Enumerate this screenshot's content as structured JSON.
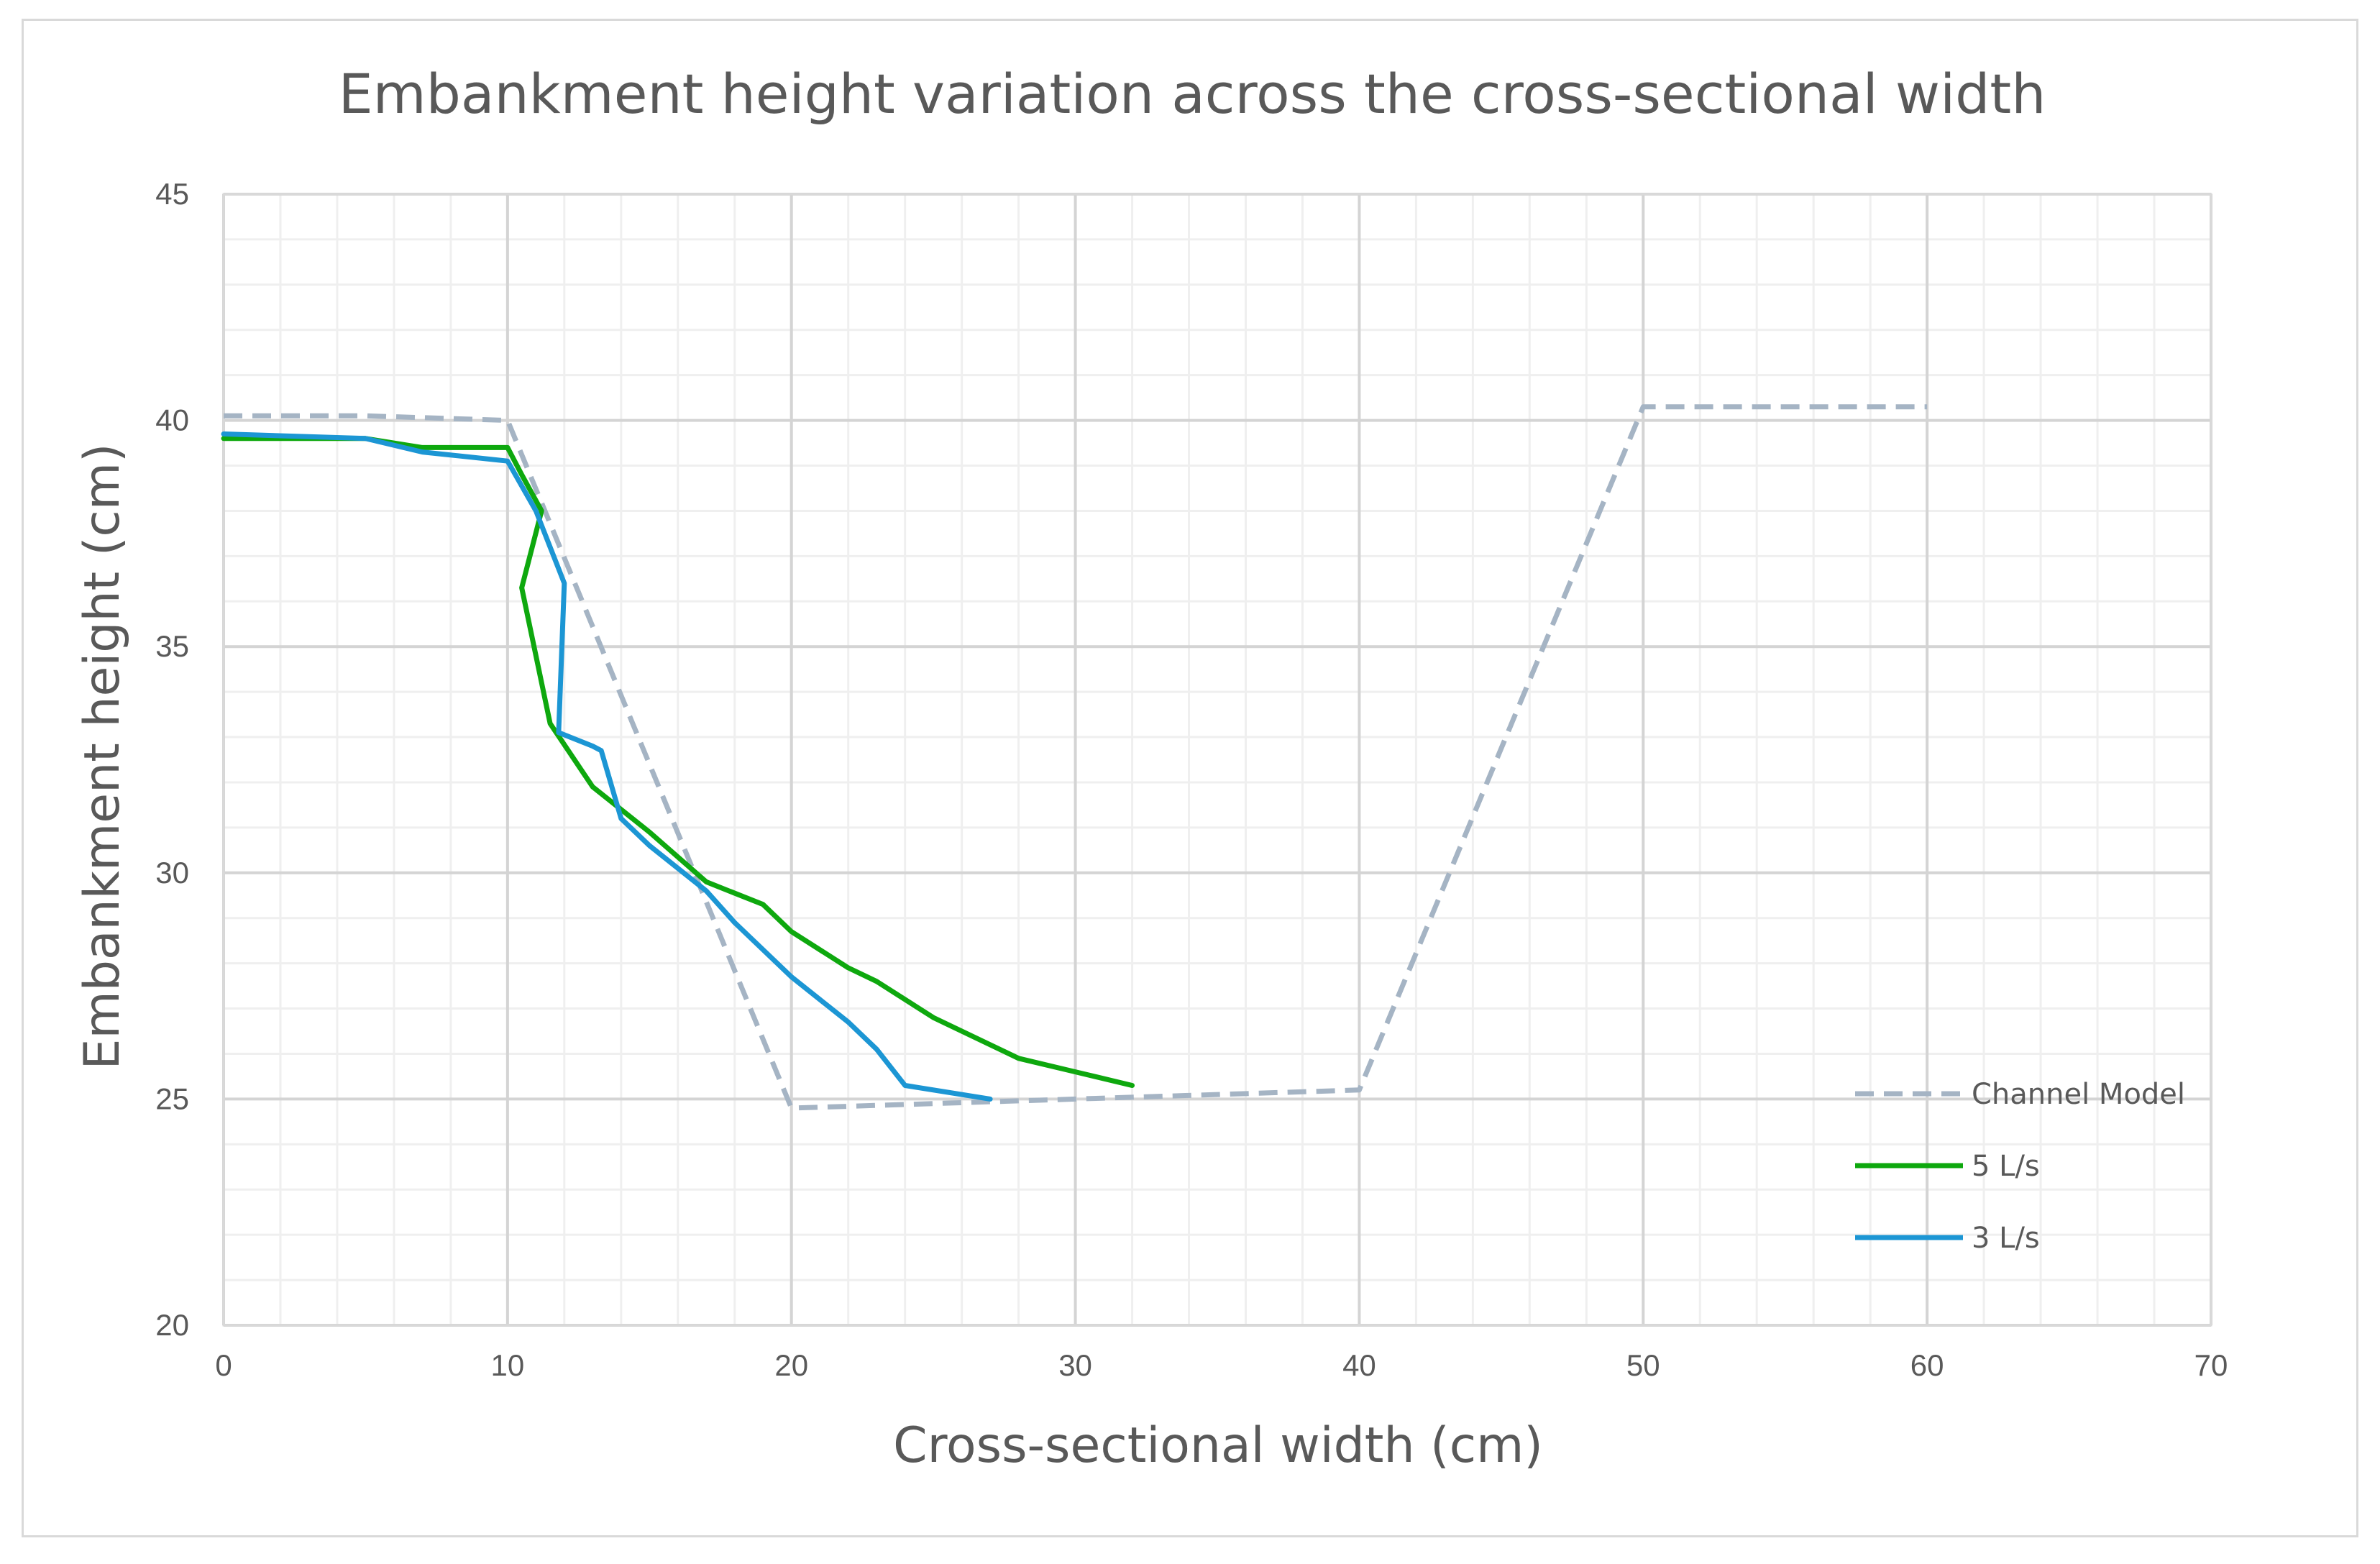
{
  "chart_data": {
    "type": "line",
    "title": "Embankment height variation across the cross-sectional width",
    "xlabel": "Cross-sectional width (cm)",
    "ylabel": "Embankment height (cm)",
    "xlim": [
      0,
      70
    ],
    "ylim": [
      20,
      45
    ],
    "x_ticks": [
      "0",
      "10",
      "20",
      "30",
      "40",
      "50",
      "60",
      "70"
    ],
    "y_ticks": [
      "20",
      "25",
      "30",
      "35",
      "40",
      "45"
    ],
    "grid": true,
    "legend_position": "bottom-right",
    "series": [
      {
        "name": "Channel Model",
        "color": "#a5b4c4",
        "style": "dashed",
        "x": [
          0,
          5,
          10,
          20,
          30,
          40,
          50,
          55,
          60
        ],
        "y": [
          40.1,
          40.1,
          40.0,
          24.8,
          25.0,
          25.2,
          40.3,
          40.3,
          40.3
        ]
      },
      {
        "name": "5 L/s",
        "color": "#0ea80e",
        "style": "solid",
        "x": [
          0,
          5,
          7,
          10,
          10.5,
          11.2,
          10.5,
          11.5,
          13,
          15,
          17,
          19,
          20,
          22,
          23,
          25,
          28,
          30,
          32
        ],
        "y": [
          39.6,
          39.6,
          39.4,
          39.4,
          38.8,
          38.0,
          36.3,
          33.3,
          31.9,
          30.9,
          29.8,
          29.3,
          28.7,
          27.9,
          27.6,
          26.8,
          25.9,
          25.6,
          25.3
        ]
      },
      {
        "name": "3 L/s",
        "color": "#1c96d4",
        "style": "solid",
        "x": [
          0,
          5,
          7,
          10,
          11,
          12,
          11.8,
          13,
          13.3,
          14,
          15,
          17,
          18,
          20,
          22,
          23,
          24,
          27
        ],
        "y": [
          39.7,
          39.6,
          39.3,
          39.1,
          38.0,
          36.4,
          33.1,
          32.8,
          32.7,
          31.2,
          30.6,
          29.6,
          28.9,
          27.7,
          26.7,
          26.1,
          25.3,
          25.0
        ]
      }
    ]
  }
}
